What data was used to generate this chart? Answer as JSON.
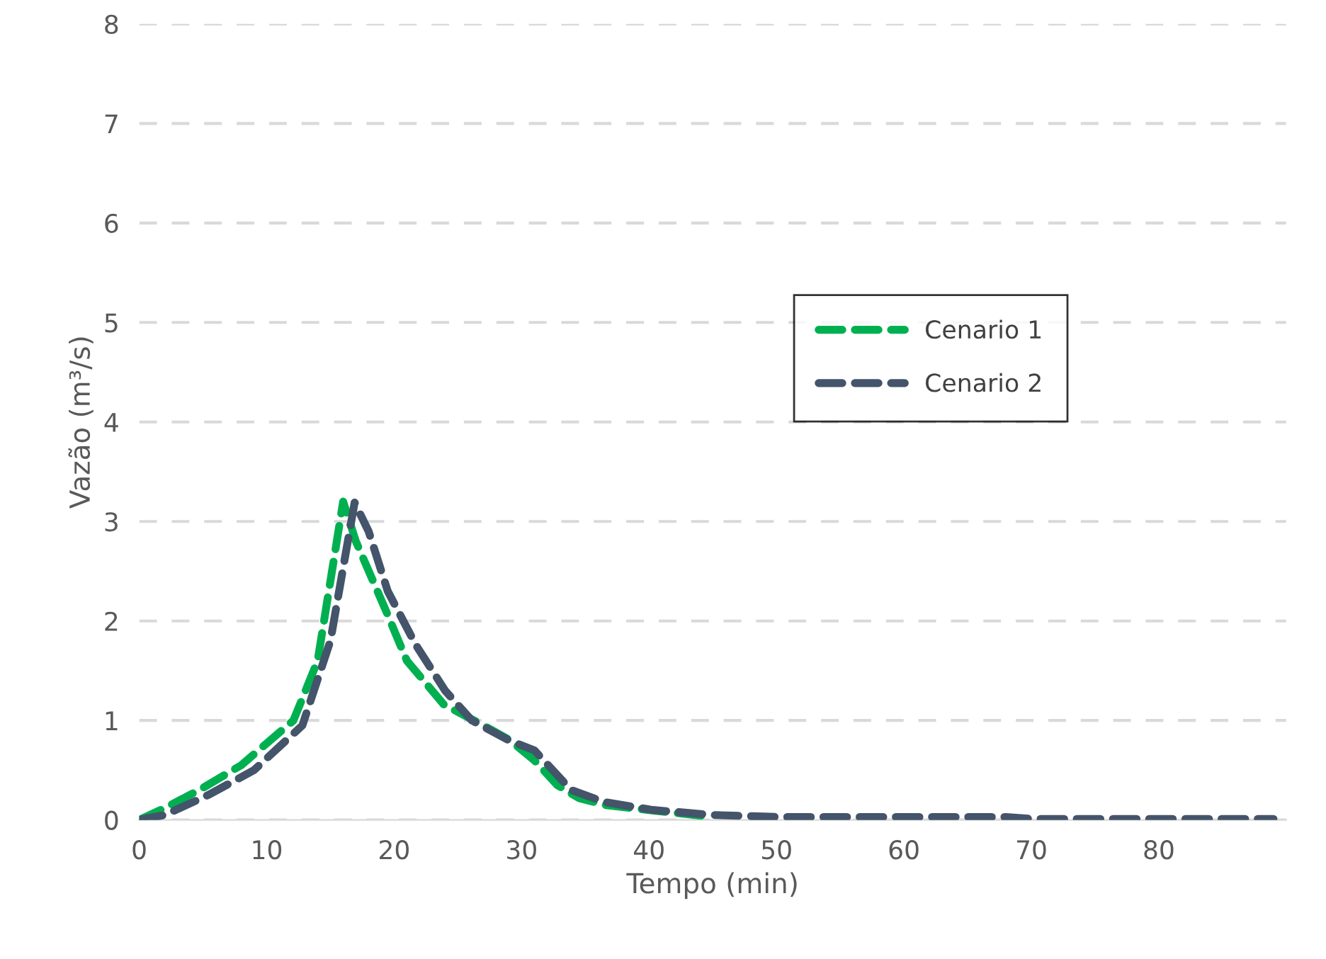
{
  "chart_data": {
    "type": "line",
    "xlabel": "Tempo (min)",
    "ylabel": "Vazão (m³/s)",
    "xlim": [
      0,
      90
    ],
    "xticks": [
      0,
      10,
      20,
      30,
      40,
      50,
      60,
      70,
      80
    ],
    "ylim": [
      0,
      8
    ],
    "yticks": [
      0,
      1,
      2,
      3,
      4,
      5,
      6,
      7,
      8
    ],
    "grid": "y",
    "legend": "right",
    "line_style": "dashed",
    "marker": "none",
    "series": [
      {
        "name": "Cenario 1",
        "color": "#00b050",
        "x": [
          0,
          2,
          4.7,
          8,
          12.1,
          14,
          16,
          17,
          19.5,
          21,
          23.9,
          27,
          29.1,
          31,
          32.8,
          34.5,
          36.6,
          40,
          45
        ],
        "values": [
          0,
          0.12,
          0.3,
          0.55,
          1.0,
          1.6,
          3.2,
          2.8,
          2.06,
          1.6,
          1.16,
          0.95,
          0.8,
          0.6,
          0.35,
          0.22,
          0.15,
          0.1,
          0.03
        ]
      },
      {
        "name": "Cenario 2",
        "color": "#44546a",
        "x": [
          0,
          2,
          5.4,
          9,
          12.8,
          15,
          16.9,
          18,
          19.5,
          21.7,
          24,
          26.1,
          29,
          31,
          33.9,
          36.5,
          40.3,
          45,
          50,
          60,
          68,
          70,
          80,
          89
        ],
        "values": [
          0,
          0.05,
          0.25,
          0.5,
          0.95,
          1.8,
          3.19,
          2.9,
          2.3,
          1.76,
          1.3,
          1.0,
          0.8,
          0.7,
          0.3,
          0.18,
          0.1,
          0.05,
          0.03,
          0.03,
          0.03,
          0.01,
          0.01,
          0.01
        ]
      }
    ]
  }
}
